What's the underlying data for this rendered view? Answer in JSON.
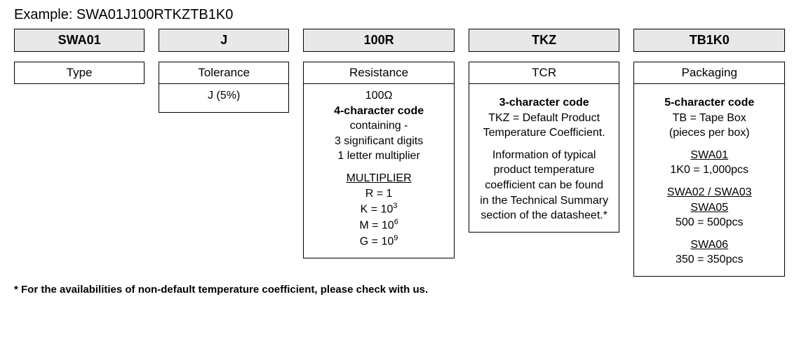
{
  "example_label": "Example: SWA01J100RTKZTB1K0",
  "columns": {
    "type": {
      "code": "SWA01",
      "header": "Type"
    },
    "tolerance": {
      "code": "J",
      "header": "Tolerance",
      "value": "J (5%)"
    },
    "resistance": {
      "code": "100R",
      "header": "Resistance",
      "value_ohm": "100Ω",
      "code_title": "4-character code",
      "containing": "containing -",
      "sig_digits": "3 significant digits",
      "letter_mult": "1 letter multiplier",
      "multiplier_label": "MULTIPLIER",
      "mult_r": "R = 1",
      "mult_k_prefix": "K = 10",
      "mult_k_exp": "3",
      "mult_m_prefix": "M = 10",
      "mult_m_exp": "6",
      "mult_g_prefix": "G = 10",
      "mult_g_exp": "9"
    },
    "tcr": {
      "code": "TKZ",
      "header": "TCR",
      "code_title": "3-character code",
      "line1": "TKZ = Default Product",
      "line2": "Temperature Coefficient.",
      "info1": "Information of typical",
      "info2": "product temperature",
      "info3": "coefficient can be found",
      "info4": "in the Technical Summary",
      "info5": "section of the datasheet.*"
    },
    "packaging": {
      "code": "TB1K0",
      "header": "Packaging",
      "code_title": "5-character code",
      "tb1": "TB = Tape Box",
      "tb2": "(pieces per box)",
      "group1_label": "SWA01",
      "group1_val": "1K0 = 1,000pcs",
      "group2_label1": "SWA02 / SWA03",
      "group2_label2": "SWA05",
      "group2_val": "500 = 500pcs",
      "group3_label": "SWA06",
      "group3_val": "350 = 350pcs"
    }
  },
  "footnote": "* For the availabilities of non-default temperature coefficient, please check with us."
}
